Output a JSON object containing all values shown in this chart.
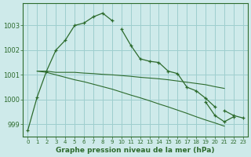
{
  "title": "Graphe pression niveau de la mer (hPa)",
  "background_color": "#ceeaea",
  "grid_color": "#9ecece",
  "line_color": "#2d6b2d",
  "xlim": [
    -0.5,
    23.5
  ],
  "ylim": [
    998.5,
    1003.9
  ],
  "yticks": [
    999,
    1000,
    1001,
    1002,
    1003
  ],
  "xticks": [
    0,
    1,
    2,
    3,
    4,
    5,
    6,
    7,
    8,
    9,
    10,
    11,
    12,
    13,
    14,
    15,
    16,
    17,
    18,
    19,
    20,
    21,
    22,
    23
  ],
  "series": [
    {
      "x": [
        0,
        1,
        2,
        3,
        4,
        5,
        6,
        7,
        8,
        9
      ],
      "y": [
        998.75,
        1000.1,
        1001.15,
        1002.0,
        1002.4,
        1003.0,
        1003.1,
        1003.35,
        1003.5,
        1003.2
      ],
      "marker": "+"
    },
    {
      "x": [
        10,
        11,
        12,
        13,
        14,
        15,
        16,
        17,
        18,
        19,
        20
      ],
      "y": [
        1002.85,
        1002.2,
        1001.65,
        1001.55,
        1001.5,
        1001.15,
        1001.05,
        1000.5,
        1000.35,
        1000.05,
        999.7
      ],
      "marker": "+"
    },
    {
      "x": [
        1,
        2,
        3,
        4,
        5,
        6,
        7,
        8,
        9,
        10,
        11,
        12,
        13,
        14,
        15,
        16,
        17,
        18,
        19,
        20,
        21
      ],
      "y": [
        1001.15,
        1001.15,
        1001.1,
        1001.1,
        1001.1,
        1001.07,
        1001.05,
        1001.02,
        1001.0,
        1000.97,
        1000.94,
        1000.9,
        1000.87,
        1000.84,
        1000.8,
        1000.75,
        1000.7,
        1000.65,
        1000.6,
        1000.52,
        1000.45
      ],
      "marker": null
    },
    {
      "x": [
        1,
        2,
        3,
        4,
        5,
        6,
        7,
        8,
        9,
        10,
        11,
        12,
        13,
        14,
        15,
        16,
        17,
        18,
        19,
        20,
        21
      ],
      "y": [
        1001.15,
        1001.1,
        1001.0,
        1000.9,
        1000.8,
        1000.72,
        1000.62,
        1000.52,
        1000.42,
        1000.3,
        1000.18,
        1000.07,
        999.95,
        999.82,
        999.7,
        999.57,
        999.44,
        999.3,
        999.17,
        999.05,
        998.92
      ],
      "marker": null
    },
    {
      "x": [
        19,
        20,
        21,
        22
      ],
      "y": [
        999.9,
        999.35,
        999.1,
        999.3
      ],
      "marker": "+"
    },
    {
      "x": [
        21,
        22,
        23
      ],
      "y": [
        999.55,
        999.35,
        999.25
      ],
      "marker": "+"
    }
  ]
}
